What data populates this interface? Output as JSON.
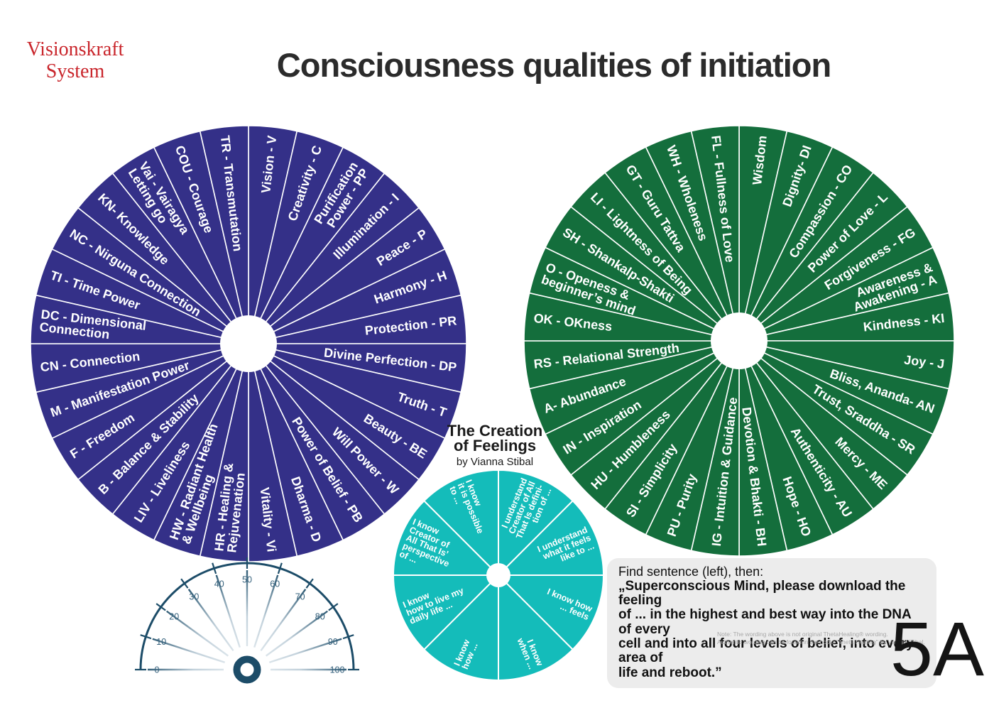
{
  "logo": {
    "line1": "Visionskraft",
    "line2": "System"
  },
  "title": "Consciousness qualities of initiation",
  "wheels": [
    {
      "id": "wheel-blue",
      "name": "initiation-qualities-wheel-1",
      "color": "#343088",
      "segments_clockwise_from_top": [
        [
          "Vision - V"
        ],
        [
          "Creativity - C"
        ],
        [
          "Purification",
          "Power - PP"
        ],
        [
          "Illumination - I"
        ],
        [
          "Peace - P"
        ],
        [
          "Harmony - H"
        ],
        [
          "Protection - PR"
        ],
        [
          "Divine Perfection - DP"
        ],
        [
          "Truth - T"
        ],
        [
          "Beauty - BE"
        ],
        [
          "Will Power - W"
        ],
        [
          "Power of Belief - PB"
        ],
        [
          "Dharma - D"
        ],
        [
          "Vitality - Vi"
        ],
        [
          "HR - Healing &",
          "Rejuvenation"
        ],
        [
          "HW - Radiant Health",
          "& Wellbeing"
        ],
        [
          "LIV - Liveliness"
        ],
        [
          "B - Balance & Stability"
        ],
        [
          "F - Freedom"
        ],
        [
          "M - Manifestation Power"
        ],
        [
          "CN - Connection"
        ],
        [
          "DC - Dimensional",
          "Connection"
        ],
        [
          "TI - Time Power"
        ],
        [
          "NC - Nirguna Connection"
        ],
        [
          "KN- Knowledge"
        ],
        [
          "Vai - Vairagya",
          "Letting go"
        ],
        [
          "COU - Courage"
        ],
        [
          "TR - Transmutation"
        ]
      ]
    },
    {
      "id": "wheel-green",
      "name": "initiation-qualities-wheel-2",
      "color": "#146e3c",
      "segments_clockwise_from_top": [
        [
          "Wisdom"
        ],
        [
          "Dignity- DI"
        ],
        [
          "Compassion - CO"
        ],
        [
          "Power of Love - L"
        ],
        [
          "Forgiveness - FG"
        ],
        [
          "Awareness &",
          "Awakening - A"
        ],
        [
          "Kindness - KI"
        ],
        [
          "Joy - J"
        ],
        [
          "Bliss, Ananda- AN"
        ],
        [
          "Trust, Sraddha - SR"
        ],
        [
          "Mercy - ME"
        ],
        [
          "Authenticity - AU"
        ],
        [
          "Hope - HO"
        ],
        [
          "Devotion & Bhakti - BH"
        ],
        [
          "IG - Intuition & Guidance"
        ],
        [
          "PU - Purity"
        ],
        [
          "SI - Simplicity"
        ],
        [
          "HU - Humbleness"
        ],
        [
          "IN - Inspiration"
        ],
        [
          "A- Abundance"
        ],
        [
          "RS - Relational Strength"
        ],
        [
          "OK - OKness"
        ],
        [
          "O - Openess &",
          "beginner’s mind"
        ],
        [
          "SH - Shankalp-Shakti"
        ],
        [
          "LI - Lightness of Being"
        ],
        [
          "GT - Guru Tattva"
        ],
        [
          "WH - Wholeness"
        ],
        [
          "FL - Fullness of Love"
        ]
      ]
    },
    {
      "id": "wheel-teal",
      "name": "creation-of-feelings-wheel",
      "color": "#14bcba",
      "segments_clockwise_from_top": [
        [
          "I understand",
          "Creator of All",
          "That Is defini-",
          "tion of ..."
        ],
        [
          "I understand",
          "what it feels",
          "like to ..."
        ],
        [
          "I know how",
          "... feels"
        ],
        [
          "I know",
          "when ..."
        ],
        [
          "I know",
          "how ..."
        ],
        [
          "I know",
          "how to live my",
          "daily life ..."
        ],
        [
          "I know",
          "Creator of",
          "All That Is’",
          "perspective",
          "of ..."
        ],
        [
          "I know",
          "it is possible",
          "to ..."
        ]
      ]
    }
  ],
  "feelings_heading": {
    "line1": "The Creation",
    "line2": "of Feelings",
    "byline": "by Vianna Stibal"
  },
  "pendulum_scale": {
    "ticks": [
      0,
      10,
      20,
      30,
      40,
      50,
      60,
      70,
      80,
      90,
      100
    ],
    "arc_color": "#1c4c68",
    "number_color": "#35617c"
  },
  "instruction_box": {
    "intro": "Find sentence (left), then:",
    "quote_lines": [
      "„Superconscious Mind, please download the feeling",
      "of ... in the highest and best way into the DNA of every",
      "cell and into all four levels of belief, into every area of",
      "life and reboot.”"
    ]
  },
  "note": {
    "line1": "Note: The wording above is not original ThetaHealing® wording.",
    "line2": "Authentic wording can be found in the book: \"Theta Healing\" by Vianna Stibal."
  },
  "page_label": "5A",
  "colors": {
    "wheel_blue": "#343088",
    "wheel_green": "#146e3c",
    "wheel_teal": "#14bcba",
    "logo_red": "#c9252b",
    "pendulum_navy": "#1c4c68",
    "box_gray": "#ececec"
  }
}
